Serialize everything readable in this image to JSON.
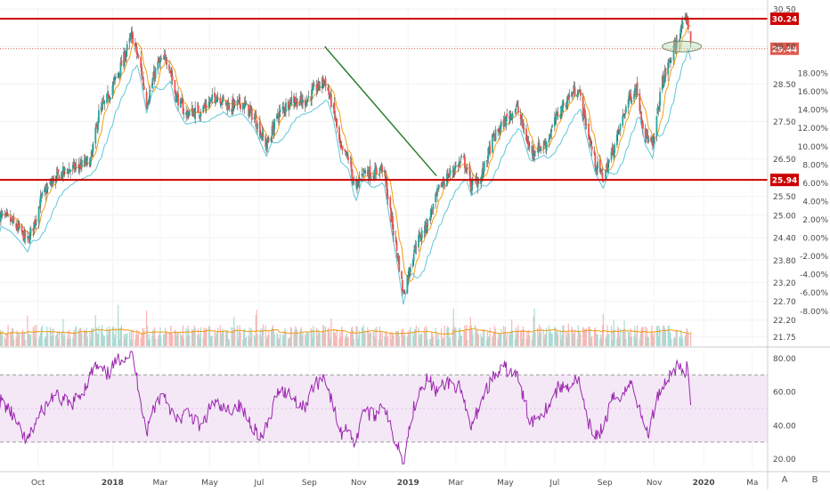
{
  "chart_data": [
    {
      "type": "candlestick",
      "panel": "price",
      "x_range": [
        "2017-08-15",
        "2020-03-20"
      ],
      "ylim": [
        21.6,
        30.55
      ],
      "price_ticks": [
        "30.50",
        "29.50",
        "28.50",
        "27.50",
        "26.50",
        "25.50",
        "25.00",
        "24.40",
        "23.80",
        "23.20",
        "22.70",
        "22.20",
        "21.75"
      ],
      "price_tick_values": [
        30.5,
        29.5,
        28.5,
        27.5,
        26.5,
        25.5,
        25.0,
        24.4,
        23.8,
        23.2,
        22.7,
        22.2,
        21.75
      ],
      "percent_ticks": [
        "18.00%",
        "16.00%",
        "14.00%",
        "12.00%",
        "10.00%",
        "8.00%",
        "6.00%",
        "4.00%",
        "2.00%",
        "0.00%",
        "-2.00%",
        "-4.00%",
        "-6.00%",
        "-8.00%"
      ],
      "percent_tick_values": [
        18,
        16,
        14,
        12,
        10,
        8,
        6,
        4,
        2,
        0,
        -2,
        -4,
        -6,
        -8
      ],
      "percent_base_price": 24.4,
      "x_ticks": [
        {
          "date": "2017-10-01",
          "label": "Oct",
          "bold": false
        },
        {
          "date": "2018-01-01",
          "label": "2018",
          "bold": true
        },
        {
          "date": "2018-03-01",
          "label": "Mar",
          "bold": false
        },
        {
          "date": "2018-05-01",
          "label": "May",
          "bold": false
        },
        {
          "date": "2018-07-01",
          "label": "Jul",
          "bold": false
        },
        {
          "date": "2018-09-01",
          "label": "Sep",
          "bold": false
        },
        {
          "date": "2018-11-01",
          "label": "Nov",
          "bold": false
        },
        {
          "date": "2019-01-01",
          "label": "2019",
          "bold": true
        },
        {
          "date": "2019-03-01",
          "label": "Mar",
          "bold": false
        },
        {
          "date": "2019-05-01",
          "label": "May",
          "bold": false
        },
        {
          "date": "2019-07-01",
          "label": "Jul",
          "bold": false
        },
        {
          "date": "2019-09-01",
          "label": "Sep",
          "bold": false
        },
        {
          "date": "2019-11-01",
          "label": "Nov",
          "bold": false
        },
        {
          "date": "2020-01-01",
          "label": "2020",
          "bold": true
        },
        {
          "date": "2020-03-01",
          "label": "Ma",
          "bold": false
        }
      ],
      "close_series": [
        [
          "2017-08-15",
          25.0
        ],
        [
          "2017-08-28",
          24.85
        ],
        [
          "2017-09-10",
          24.55
        ],
        [
          "2017-09-18",
          24.3
        ],
        [
          "2017-09-25",
          24.7
        ],
        [
          "2017-10-05",
          25.45
        ],
        [
          "2017-10-20",
          25.95
        ],
        [
          "2017-11-05",
          26.2
        ],
        [
          "2017-11-20",
          26.3
        ],
        [
          "2017-12-05",
          26.45
        ],
        [
          "2017-12-15",
          27.7
        ],
        [
          "2017-12-25",
          28.1
        ],
        [
          "2018-01-10",
          28.9
        ],
        [
          "2018-01-25",
          29.8
        ],
        [
          "2018-02-05",
          28.9
        ],
        [
          "2018-02-12",
          28.0
        ],
        [
          "2018-02-25",
          29.0
        ],
        [
          "2018-03-10",
          29.2
        ],
        [
          "2018-03-20",
          28.2
        ],
        [
          "2018-04-01",
          27.7
        ],
        [
          "2018-04-20",
          27.8
        ],
        [
          "2018-05-10",
          28.2
        ],
        [
          "2018-05-25",
          27.9
        ],
        [
          "2018-06-10",
          28.0
        ],
        [
          "2018-06-25",
          27.6
        ],
        [
          "2018-07-10",
          26.85
        ],
        [
          "2018-07-25",
          27.7
        ],
        [
          "2018-08-10",
          28.1
        ],
        [
          "2018-08-25",
          28.0
        ],
        [
          "2018-09-10",
          28.4
        ],
        [
          "2018-09-20",
          28.6
        ],
        [
          "2018-10-01",
          27.8
        ],
        [
          "2018-10-10",
          26.7
        ],
        [
          "2018-10-20",
          26.5
        ],
        [
          "2018-10-28",
          25.6
        ],
        [
          "2018-11-05",
          26.2
        ],
        [
          "2018-11-20",
          26.1
        ],
        [
          "2018-12-01",
          26.3
        ],
        [
          "2018-12-12",
          24.8
        ],
        [
          "2018-12-20",
          23.8
        ],
        [
          "2018-12-26",
          22.9
        ],
        [
          "2019-01-10",
          24.2
        ],
        [
          "2019-01-25",
          24.8
        ],
        [
          "2019-02-10",
          25.8
        ],
        [
          "2019-02-25",
          26.2
        ],
        [
          "2019-03-10",
          26.5
        ],
        [
          "2019-03-20",
          25.8
        ],
        [
          "2019-04-01",
          26.0
        ],
        [
          "2019-04-15",
          27.0
        ],
        [
          "2019-04-30",
          27.5
        ],
        [
          "2019-05-15",
          27.9
        ],
        [
          "2019-06-01",
          26.7
        ],
        [
          "2019-06-20",
          26.9
        ],
        [
          "2019-07-05",
          27.7
        ],
        [
          "2019-07-20",
          28.2
        ],
        [
          "2019-07-30",
          28.4
        ],
        [
          "2019-08-10",
          27.3
        ],
        [
          "2019-08-20",
          26.4
        ],
        [
          "2019-08-30",
          26.0
        ],
        [
          "2019-09-15",
          27.0
        ],
        [
          "2019-09-30",
          28.1
        ],
        [
          "2019-10-10",
          28.4
        ],
        [
          "2019-10-20",
          27.2
        ],
        [
          "2019-10-30",
          26.8
        ],
        [
          "2019-11-10",
          28.5
        ],
        [
          "2019-11-25",
          29.4
        ],
        [
          "2019-12-05",
          30.0
        ],
        [
          "2019-12-12",
          30.24
        ],
        [
          "2019-12-16",
          29.44
        ]
      ],
      "resistance_levels": [
        {
          "price": 30.24,
          "label": "30.24",
          "style": "solid",
          "color": "#cc0000"
        },
        {
          "price": 25.94,
          "label": "25.94",
          "style": "solid",
          "color": "#cc0000"
        },
        {
          "price": 29.44,
          "label": "29.44",
          "style": "dotted",
          "color": "#e05a4f"
        }
      ],
      "trendline": {
        "from": [
          "2018-09-20",
          29.5
        ],
        "to": [
          "2019-02-05",
          26.05
        ],
        "color": "#2e7d32"
      },
      "annotation_ellipse": {
        "center": [
          "2019-12-05",
          29.5
        ],
        "color": "#a5d6a7"
      },
      "moving_averages": [
        {
          "period": 10,
          "color": "#f39c12"
        },
        {
          "period": 20,
          "color": "#5ec6d9"
        }
      ],
      "volume_ma_color": "#f39c12",
      "colors": {
        "up": "#26a69a",
        "down": "#ef5350",
        "wick": "#4a4a4a",
        "volume_up": "#a7dcd5",
        "volume_down": "#f8b6b4"
      }
    },
    {
      "type": "line",
      "panel": "rsi",
      "ylim": [
        15,
        85
      ],
      "y_ticks": [
        "80.00",
        "60.00",
        "40.00",
        "20.00"
      ],
      "y_tick_values": [
        80,
        60,
        40,
        20
      ],
      "band": [
        30,
        70
      ],
      "band_color": "#f3e5f5",
      "line_color": "#9c27b0",
      "series": [
        [
          "2017-08-15",
          55
        ],
        [
          "2017-08-28",
          48
        ],
        [
          "2017-09-10",
          35
        ],
        [
          "2017-09-18",
          30
        ],
        [
          "2017-10-01",
          45
        ],
        [
          "2017-10-20",
          58
        ],
        [
          "2017-11-10",
          52
        ],
        [
          "2017-11-25",
          60
        ],
        [
          "2017-12-10",
          75
        ],
        [
          "2017-12-25",
          70
        ],
        [
          "2018-01-10",
          80
        ],
        [
          "2018-01-25",
          83
        ],
        [
          "2018-02-05",
          55
        ],
        [
          "2018-02-12",
          35
        ],
        [
          "2018-02-20",
          50
        ],
        [
          "2018-03-05",
          60
        ],
        [
          "2018-03-20",
          42
        ],
        [
          "2018-04-05",
          48
        ],
        [
          "2018-04-20",
          38
        ],
        [
          "2018-05-05",
          54
        ],
        [
          "2018-05-20",
          48
        ],
        [
          "2018-06-05",
          52
        ],
        [
          "2018-06-20",
          42
        ],
        [
          "2018-07-05",
          32
        ],
        [
          "2018-07-15",
          45
        ],
        [
          "2018-07-25",
          62
        ],
        [
          "2018-08-10",
          58
        ],
        [
          "2018-08-25",
          50
        ],
        [
          "2018-09-05",
          62
        ],
        [
          "2018-09-20",
          70
        ],
        [
          "2018-09-28",
          55
        ],
        [
          "2018-10-10",
          35
        ],
        [
          "2018-10-20",
          40
        ],
        [
          "2018-10-28",
          26
        ],
        [
          "2018-11-05",
          50
        ],
        [
          "2018-11-20",
          45
        ],
        [
          "2018-12-01",
          55
        ],
        [
          "2018-12-12",
          35
        ],
        [
          "2018-12-20",
          28
        ],
        [
          "2018-12-26",
          18
        ],
        [
          "2019-01-05",
          45
        ],
        [
          "2019-01-15",
          62
        ],
        [
          "2019-01-25",
          68
        ],
        [
          "2019-02-05",
          60
        ],
        [
          "2019-02-20",
          66
        ],
        [
          "2019-03-05",
          62
        ],
        [
          "2019-03-20",
          38
        ],
        [
          "2019-04-01",
          55
        ],
        [
          "2019-04-15",
          68
        ],
        [
          "2019-04-30",
          74
        ],
        [
          "2019-05-15",
          70
        ],
        [
          "2019-06-01",
          42
        ],
        [
          "2019-06-20",
          50
        ],
        [
          "2019-07-05",
          62
        ],
        [
          "2019-07-20",
          64
        ],
        [
          "2019-07-30",
          68
        ],
        [
          "2019-08-10",
          42
        ],
        [
          "2019-08-20",
          34
        ],
        [
          "2019-08-30",
          38
        ],
        [
          "2019-09-10",
          55
        ],
        [
          "2019-09-25",
          60
        ],
        [
          "2019-10-05",
          66
        ],
        [
          "2019-10-15",
          46
        ],
        [
          "2019-10-25",
          35
        ],
        [
          "2019-11-05",
          58
        ],
        [
          "2019-11-20",
          70
        ],
        [
          "2019-11-30",
          76
        ],
        [
          "2019-12-05",
          72
        ],
        [
          "2019-12-12",
          74
        ],
        [
          "2019-12-16",
          48
        ]
      ]
    }
  ],
  "scale_buttons": {
    "auto": "A",
    "buttons": "B"
  }
}
